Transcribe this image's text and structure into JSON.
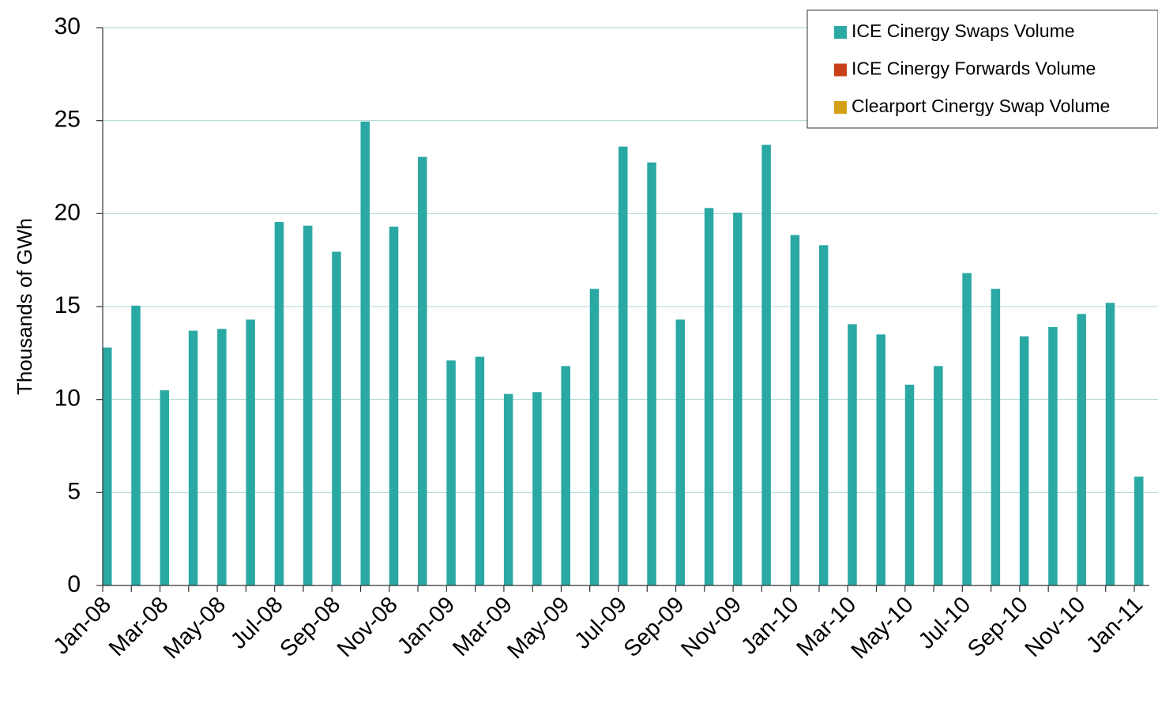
{
  "chart_data": {
    "type": "bar",
    "y_label": "Thousands of GWh",
    "categories": [
      "Jan-08",
      null,
      "Mar-08",
      null,
      "May-08",
      null,
      "Jul-08",
      null,
      "Sep-08",
      null,
      "Nov-08",
      null,
      "Jan-09",
      null,
      "Mar-09",
      null,
      "May-09",
      null,
      "Jul-09",
      null,
      "Sep-09",
      null,
      "Nov-09",
      null,
      "Jan-10",
      null,
      "Mar-10",
      null,
      "May-10",
      null,
      "Jul-10",
      null,
      "Sep-10",
      null,
      "Nov-10",
      null,
      "Jan-11"
    ],
    "series": [
      {
        "name": "ICE Cinergy Swaps Volume",
        "color": "#2aa8a4",
        "values": [
          12.8,
          15.05,
          10.5,
          13.7,
          13.8,
          14.3,
          19.55,
          19.35,
          17.95,
          24.95,
          19.3,
          23.05,
          12.1,
          12.3,
          10.3,
          10.4,
          11.8,
          15.95,
          23.6,
          22.75,
          14.3,
          20.3,
          20.05,
          23.7,
          18.85,
          18.3,
          14.05,
          13.5,
          10.8,
          11.8,
          16.8,
          15.95,
          13.4,
          13.9,
          14.6,
          15.2,
          5.85
        ]
      },
      {
        "name": "ICE Cinergy Forwards Volume",
        "color": "#c8401a",
        "values": [
          0,
          0,
          0,
          0,
          0,
          0,
          0,
          0,
          0,
          0,
          0,
          0,
          0,
          0,
          0,
          0,
          0,
          0,
          0,
          0,
          0,
          0,
          0,
          0,
          0,
          0,
          0,
          0,
          0,
          0,
          0,
          0,
          0,
          0,
          0,
          0,
          0
        ]
      },
      {
        "name": "Clearport Cinergy Swap Volume",
        "color": "#d4a017",
        "values": [
          0,
          0,
          0,
          0,
          0,
          0,
          0,
          0,
          0,
          0,
          0,
          0,
          0,
          0,
          0,
          0,
          0,
          0,
          0,
          0,
          0,
          0,
          0,
          0,
          0,
          0,
          0,
          0,
          0,
          0,
          0,
          0,
          0,
          0,
          0,
          0,
          0
        ]
      }
    ],
    "ylim": [
      0,
      30
    ],
    "yticks": [
      0,
      5,
      10,
      15,
      20,
      25,
      30
    ],
    "grid": true,
    "legend": "top-right"
  }
}
